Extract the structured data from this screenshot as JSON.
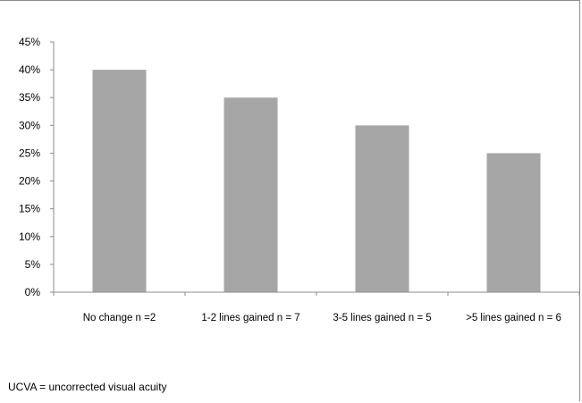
{
  "chart_data": {
    "type": "bar",
    "categories": [
      "No change n =2",
      "1-2 lines gained n = 7",
      "3-5 lines gained n = 5",
      ">5 lines gained n = 6"
    ],
    "values": [
      40,
      35,
      30,
      25
    ],
    "y_ticks": [
      "0%",
      "5%",
      "10%",
      "15%",
      "20%",
      "25%",
      "30%",
      "35%",
      "40%",
      "45%"
    ],
    "ylim": [
      0,
      45
    ],
    "grid": false,
    "bar_color": "#a6a6a6",
    "axis_color": "#8c8c8c"
  },
  "footnote": "UCVA = uncorrected visual acuity"
}
